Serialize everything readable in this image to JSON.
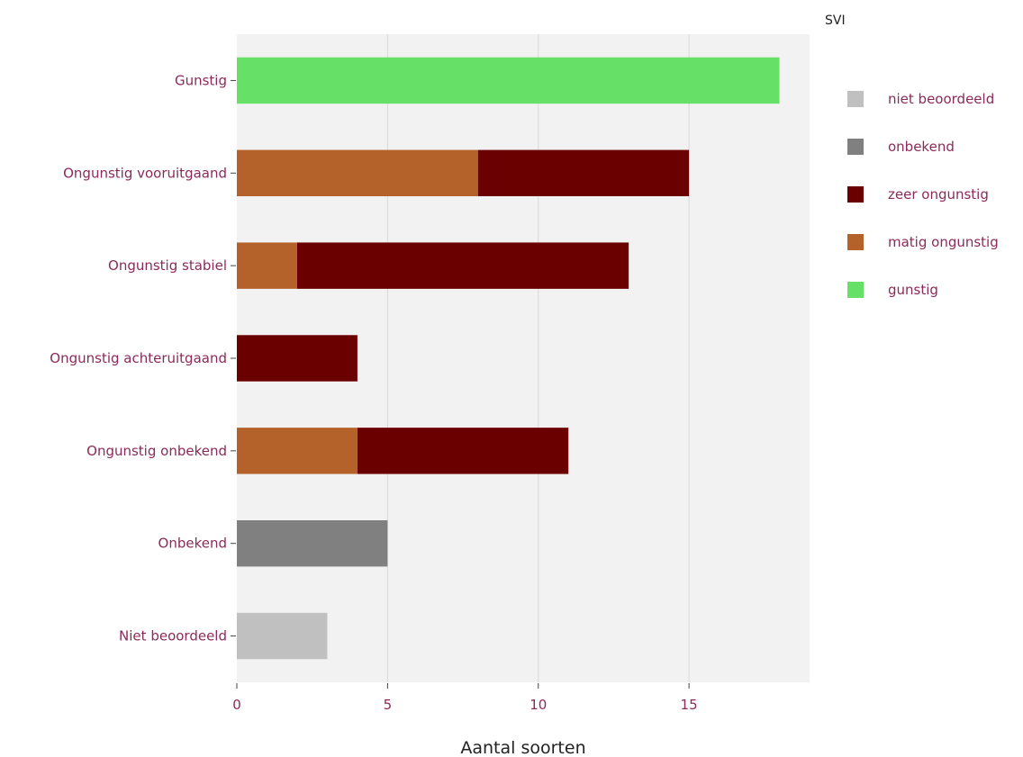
{
  "chart_data": {
    "type": "bar",
    "orientation": "horizontal",
    "stacked": true,
    "categories": [
      "Gunstig",
      "Ongunstig vooruitgaand",
      "Ongunstig stabiel",
      "Ongunstig achteruitgaand",
      "Ongunstig onbekend",
      "Onbekend",
      "Niet beoordeeld"
    ],
    "series": [
      {
        "name": "gunstig",
        "color": "#66e066",
        "values": [
          18,
          0,
          0,
          0,
          0,
          0,
          0
        ]
      },
      {
        "name": "matig ongunstig",
        "color": "#b5622a",
        "values": [
          0,
          8,
          2,
          0,
          4,
          0,
          0
        ]
      },
      {
        "name": "zeer ongunstig",
        "color": "#6b0000",
        "values": [
          0,
          7,
          11,
          4,
          7,
          0,
          0
        ]
      },
      {
        "name": "onbekend",
        "color": "#808080",
        "values": [
          0,
          0,
          0,
          0,
          0,
          5,
          0
        ]
      },
      {
        "name": "niet beoordeeld",
        "color": "#c0c0c0",
        "values": [
          0,
          0,
          0,
          0,
          0,
          0,
          3
        ]
      }
    ],
    "xlabel": "Aantal soorten",
    "ylabel": "",
    "xlim": [
      0,
      19
    ],
    "xticks": [
      0,
      5,
      10,
      15
    ],
    "grid": "vertical",
    "legend": {
      "title": "SVI",
      "position": "right",
      "order": [
        "niet beoordeeld",
        "onbekend",
        "zeer ongunstig",
        "matig ongunstig",
        "gunstig"
      ]
    }
  }
}
